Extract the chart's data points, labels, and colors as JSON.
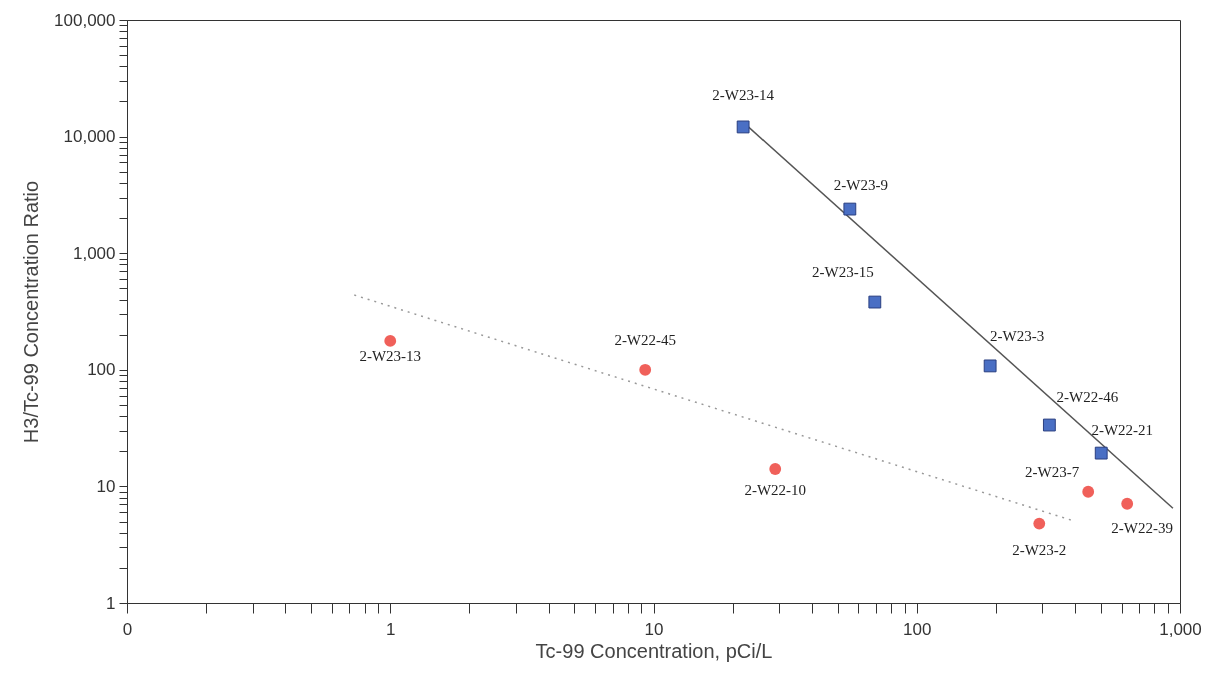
{
  "chart_data": {
    "type": "scatter",
    "xlabel": "Tc-99 Concentration, pCi/L",
    "ylabel": "H3/Tc-99 Concentration Ratio",
    "log": "xy",
    "grid": false,
    "xlim": [
      0.1,
      1000
    ],
    "ylim": [
      1,
      100000
    ],
    "xticks": [
      {
        "value": 0.1,
        "label": "0"
      },
      {
        "value": 0.2,
        "label": null
      },
      {
        "value": 0.3,
        "label": null
      },
      {
        "value": 0.4,
        "label": null
      },
      {
        "value": 0.5,
        "label": null
      },
      {
        "value": 0.6,
        "label": null
      },
      {
        "value": 0.7,
        "label": null
      },
      {
        "value": 0.8,
        "label": null
      },
      {
        "value": 0.9,
        "label": null
      },
      1,
      {
        "value": 2,
        "label": null
      },
      {
        "value": 3,
        "label": null
      },
      {
        "value": 4,
        "label": null
      },
      {
        "value": 5,
        "label": null
      },
      {
        "value": 6,
        "label": null
      },
      {
        "value": 7,
        "label": null
      },
      {
        "value": 8,
        "label": null
      },
      {
        "value": 9,
        "label": null
      },
      10,
      {
        "value": 20,
        "label": null
      },
      {
        "value": 30,
        "label": null
      },
      {
        "value": 40,
        "label": null
      },
      {
        "value": 50,
        "label": null
      },
      {
        "value": 60,
        "label": null
      },
      {
        "value": 70,
        "label": null
      },
      {
        "value": 80,
        "label": null
      },
      {
        "value": 90,
        "label": null
      },
      100,
      {
        "value": 200,
        "label": null
      },
      {
        "value": 300,
        "label": null
      },
      {
        "value": 400,
        "label": null
      },
      {
        "value": 500,
        "label": null
      },
      {
        "value": 600,
        "label": null
      },
      {
        "value": 700,
        "label": null
      },
      {
        "value": 800,
        "label": null
      },
      {
        "value": 900,
        "label": null
      },
      {
        "value": 1000,
        "label": "1,000"
      }
    ],
    "yticks": [
      1,
      {
        "value": 2,
        "label": null
      },
      {
        "value": 3,
        "label": null
      },
      {
        "value": 4,
        "label": null
      },
      {
        "value": 5,
        "label": null
      },
      {
        "value": 6,
        "label": null
      },
      {
        "value": 7,
        "label": null
      },
      {
        "value": 8,
        "label": null
      },
      {
        "value": 9,
        "label": null
      },
      10,
      {
        "value": 20,
        "label": null
      },
      {
        "value": 30,
        "label": null
      },
      {
        "value": 40,
        "label": null
      },
      {
        "value": 50,
        "label": null
      },
      {
        "value": 60,
        "label": null
      },
      {
        "value": 70,
        "label": null
      },
      {
        "value": 80,
        "label": null
      },
      {
        "value": 90,
        "label": null
      },
      100,
      {
        "value": 200,
        "label": null
      },
      {
        "value": 300,
        "label": null
      },
      {
        "value": 400,
        "label": null
      },
      {
        "value": 500,
        "label": null
      },
      {
        "value": 600,
        "label": null
      },
      {
        "value": 700,
        "label": null
      },
      {
        "value": 800,
        "label": null
      },
      {
        "value": 900,
        "label": null
      },
      {
        "value": 1000,
        "label": "1,000"
      },
      {
        "value": 2000,
        "label": null
      },
      {
        "value": 3000,
        "label": null
      },
      {
        "value": 4000,
        "label": null
      },
      {
        "value": 5000,
        "label": null
      },
      {
        "value": 6000,
        "label": null
      },
      {
        "value": 7000,
        "label": null
      },
      {
        "value": 8000,
        "label": null
      },
      {
        "value": 9000,
        "label": null
      },
      {
        "value": 10000,
        "label": "10,000"
      },
      {
        "value": 20000,
        "label": null
      },
      {
        "value": 30000,
        "label": null
      },
      {
        "value": 40000,
        "label": null
      },
      {
        "value": 50000,
        "label": null
      },
      {
        "value": 60000,
        "label": null
      },
      {
        "value": 70000,
        "label": null
      },
      {
        "value": 80000,
        "label": null
      },
      {
        "value": 90000,
        "label": null
      },
      {
        "value": 100000,
        "label": "100,000"
      }
    ],
    "series": [
      {
        "type": "line",
        "color": "#555555",
        "line_style": "solid",
        "x": [
          21.9,
          940
        ],
        "values": [
          13300,
          6.5
        ]
      },
      {
        "type": "line",
        "color": "#999999",
        "line_style": "dotted",
        "x": [
          0.73,
          390
        ],
        "values": [
          438,
          5.1
        ]
      },
      {
        "marker": "square",
        "color": "#4a6fc4",
        "x": [
          21.9,
          55.7,
          69.3,
          190,
          319,
          502
        ],
        "values": [
          12100,
          2390,
          381,
          108,
          33.6,
          19.3
        ]
      },
      {
        "marker": "circle",
        "color": "#f0605a",
        "x": [
          1.0,
          9.3,
          29,
          292,
          448,
          630
        ],
        "values": [
          177,
          100,
          14.1,
          4.8,
          9.0,
          7.1
        ]
      }
    ],
    "annotations": [
      {
        "text": "2-W23-14",
        "x": 21.9,
        "y": 12100
      },
      {
        "text": "2-W23-9",
        "x": 55.7,
        "y": 2390
      },
      {
        "text": "2-W23-15",
        "x": 69.3,
        "y": 381
      },
      {
        "text": "2-W23-3",
        "x": 190,
        "y": 108
      },
      {
        "text": "2-W22-46",
        "x": 319,
        "y": 33.6
      },
      {
        "text": "2-W22-21",
        "x": 502,
        "y": 19.3
      },
      {
        "text": "2-W23-13",
        "x": 1.0,
        "y": 177
      },
      {
        "text": "2-W22-45",
        "x": 9.3,
        "y": 100
      },
      {
        "text": "2-W22-10",
        "x": 29,
        "y": 14.1
      },
      {
        "text": "2-W23-2",
        "x": 292,
        "y": 4.8
      },
      {
        "text": "2-W23-7",
        "x": 448,
        "y": 9.0
      },
      {
        "text": "2-W22-39",
        "x": 630,
        "y": 7.1
      }
    ]
  }
}
